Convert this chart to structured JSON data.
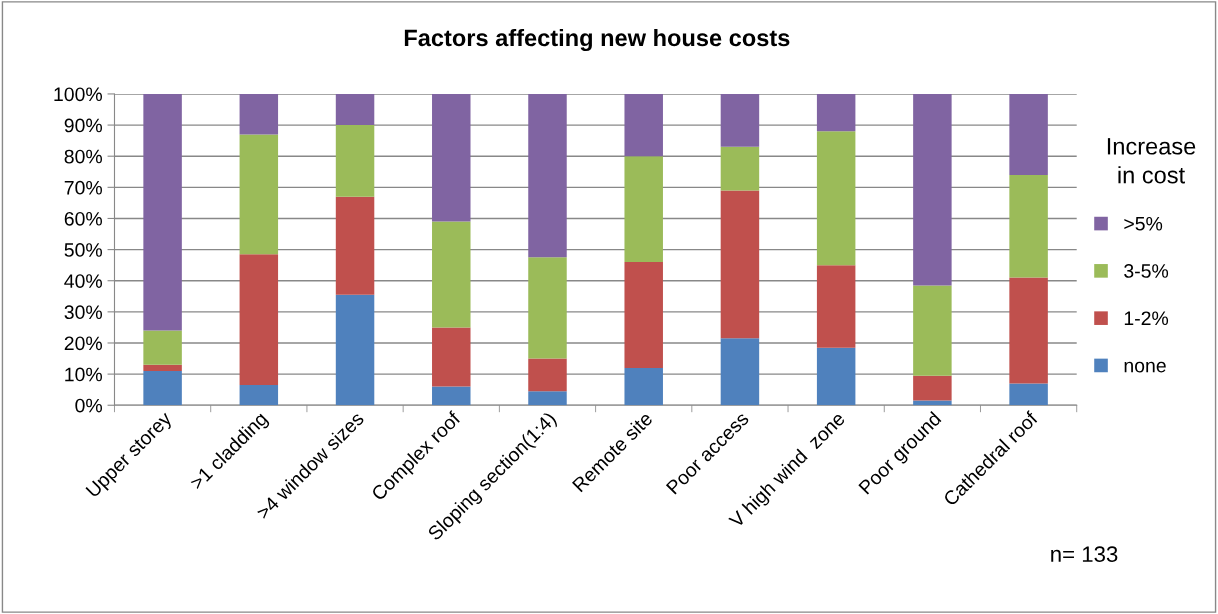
{
  "chart_data": {
    "type": "bar",
    "stacked": true,
    "title": "Factors affecting new house costs",
    "categories": [
      "Upper storey",
      ">1 cladding",
      ">4 window sizes",
      "Complex roof",
      "Sloping section(1:4)",
      "Remote site",
      "Poor access",
      "V high wind  zone",
      "Poor ground",
      "Cathedral roof"
    ],
    "series": [
      {
        "name": "none",
        "color": "#4f81bd",
        "values": [
          11,
          6.5,
          35.5,
          6,
          4.5,
          12,
          21.5,
          18.5,
          1.5,
          7
        ]
      },
      {
        "name": "1-2%",
        "color": "#c0504d",
        "values": [
          2,
          42,
          31.5,
          19,
          10.5,
          34,
          47.5,
          26.5,
          8,
          34
        ]
      },
      {
        "name": "3-5%",
        "color": "#9bbb59",
        "values": [
          11,
          38.5,
          23,
          34,
          32.5,
          34,
          14,
          43,
          29,
          33
        ]
      },
      {
        "name": ">5%",
        "color": "#8064a2",
        "values": [
          76,
          13,
          10,
          41,
          52.5,
          20,
          17,
          12,
          61.5,
          26
        ]
      }
    ],
    "ylim": [
      0,
      100
    ],
    "yticks": [
      {
        "value": 0,
        "label": "0%"
      },
      {
        "value": 10,
        "label": "10%"
      },
      {
        "value": 20,
        "label": "20%"
      },
      {
        "value": 30,
        "label": "30%"
      },
      {
        "value": 40,
        "label": "40%"
      },
      {
        "value": 50,
        "label": "50%"
      },
      {
        "value": 60,
        "label": "60%"
      },
      {
        "value": 70,
        "label": "70%"
      },
      {
        "value": 80,
        "label": "80%"
      },
      {
        "value": 90,
        "label": "90%"
      },
      {
        "value": 100,
        "label": "100%"
      }
    ],
    "grid": "y",
    "legend": "right",
    "legend_title": "Increase\nin cost",
    "annotations": [
      "n= 133"
    ]
  }
}
